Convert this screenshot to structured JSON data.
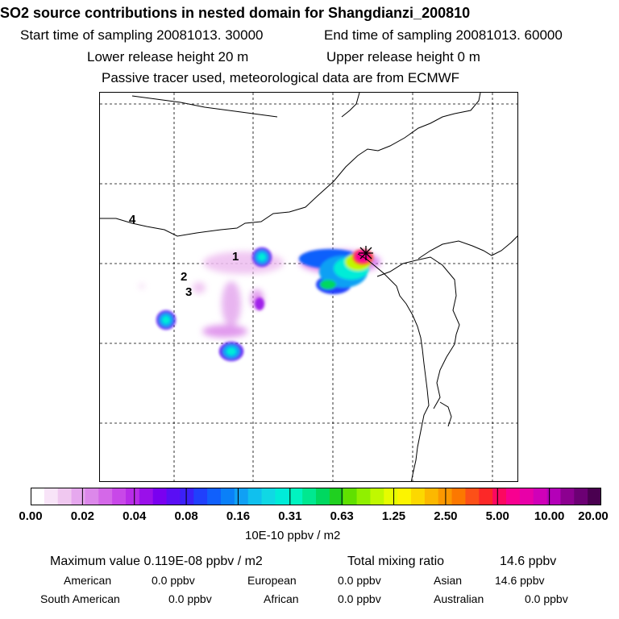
{
  "title": "SO2 source contributions in nested domain for Shangdianzi_200810",
  "start_time": "Start time of sampling 20081013. 30000",
  "end_time": "End time of sampling 20081013. 60000",
  "lower_release": "Lower release height   20 m",
  "upper_release": "Upper release height    0 m",
  "tracer_note": "Passive tracer used, meteorological data are from ECMWF",
  "map": {
    "region_labels": [
      "1",
      "2",
      "3",
      "4"
    ]
  },
  "colorbar": {
    "ticks": [
      "0.00",
      "0.02",
      "0.04",
      "0.08",
      "0.16",
      "0.31",
      "0.63",
      "1.25",
      "2.50",
      "5.00",
      "10.00",
      "20.00"
    ],
    "unit": "10E-10 ppbv / m2",
    "colors": [
      "#ffffff",
      "#f8e4f8",
      "#f0c8f0",
      "#e6a8ee",
      "#dc88ea",
      "#d468e8",
      "#c848e8",
      "#b82ce8",
      "#9a10ea",
      "#7a00f0",
      "#5a0ef4",
      "#3c20f8",
      "#2040fc",
      "#1060fc",
      "#0a80f8",
      "#10a0f4",
      "#10c0ee",
      "#10d8e4",
      "#00ecd8",
      "#00f4c0",
      "#00e890",
      "#00d860",
      "#20d020",
      "#60e000",
      "#90f000",
      "#c0f800",
      "#e6fc00",
      "#fcf400",
      "#fcd800",
      "#fcb800",
      "#fc9800",
      "#fc7800",
      "#fc5018",
      "#fc2828",
      "#fc0860",
      "#f80090",
      "#e800a8",
      "#d000b8",
      "#b400b8",
      "#8c0090",
      "#6c0074",
      "#4a0050"
    ]
  },
  "summary": {
    "max_label": "Maximum value  0.119E-08 ppbv / m2",
    "total_label": "Total mixing ratio",
    "total_value": "14.6 ppbv",
    "rows": [
      [
        {
          "k": "American",
          "v": "0.0 ppbv"
        },
        {
          "k": "European",
          "v": "0.0 ppbv"
        },
        {
          "k": "Asian",
          "v": "14.6 ppbv"
        }
      ],
      [
        {
          "k": "South American",
          "v": "0.0 ppbv"
        },
        {
          "k": "African",
          "v": "0.0 ppbv"
        },
        {
          "k": "Australian",
          "v": "0.0 ppbv"
        }
      ]
    ]
  }
}
